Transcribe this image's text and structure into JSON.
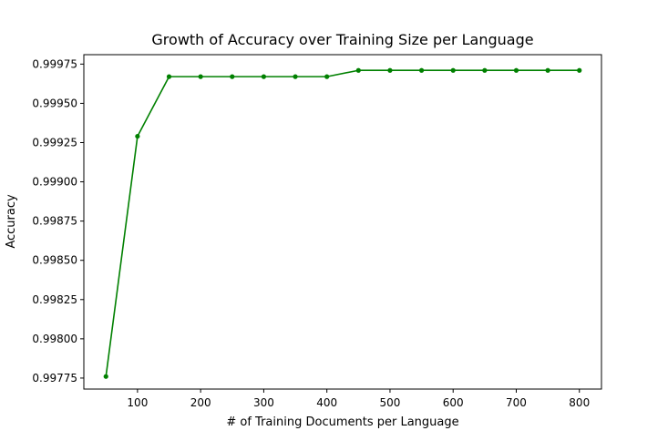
{
  "chart_data": {
    "type": "line",
    "title": "Growth of Accuracy over Training Size per Language",
    "xlabel": "# of Training Documents per Language",
    "ylabel": "Accuracy",
    "xlim": [
      15,
      835
    ],
    "ylim": [
      0.99768,
      0.9978
    ],
    "ylim_full": [
      0.99768,
      0.99981
    ],
    "x_ticks": [
      100,
      200,
      300,
      400,
      500,
      600,
      700,
      800
    ],
    "x_tick_labels": [
      "100",
      "200",
      "300",
      "400",
      "500",
      "600",
      "700",
      "800"
    ],
    "y_ticks": [
      0.99775,
      0.998,
      0.99825,
      0.9985,
      0.99875,
      0.999,
      0.99925,
      0.9995,
      0.99975
    ],
    "y_tick_labels": [
      "0.99775",
      "0.99800",
      "0.99825",
      "0.99850",
      "0.99875",
      "0.99900",
      "0.99925",
      "0.99950",
      "0.99975"
    ],
    "grid": false,
    "legend": "none",
    "series": [
      {
        "color": "#008000",
        "x": [
          50,
          100,
          150,
          200,
          250,
          300,
          350,
          400,
          450,
          500,
          550,
          600,
          650,
          700,
          750,
          800
        ],
        "y": [
          0.99776,
          0.99929,
          0.99967,
          0.99967,
          0.99967,
          0.99967,
          0.99967,
          0.99967,
          0.99971,
          0.99971,
          0.99971,
          0.99971,
          0.99971,
          0.99971,
          0.99971,
          0.99971
        ]
      }
    ]
  }
}
